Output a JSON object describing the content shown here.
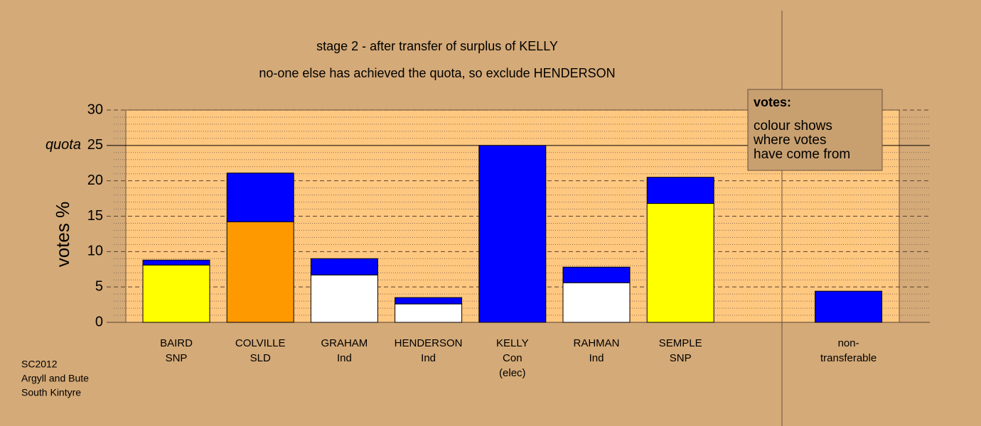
{
  "chart_data": {
    "type": "stacked-bar",
    "title": "stage 2 - after transfer of surplus of KELLY",
    "subtitle": "no-one else has achieved the quota, so exclude HENDERSON",
    "y_label": "votes %",
    "categories": [
      [
        "BAIRD",
        "SNP"
      ],
      [
        "COLVILLE",
        "SLD"
      ],
      [
        "GRAHAM",
        "Ind"
      ],
      [
        "HENDERSON",
        "Ind"
      ],
      [
        "KELLY",
        "Con",
        "(elec)"
      ],
      [
        "RAHMAN",
        "Ind"
      ],
      [
        "SEMPLE",
        "SNP"
      ],
      null,
      [
        "non-",
        "transferable"
      ]
    ],
    "series": [
      {
        "colors": [
          "#ffff00",
          "#ff9900",
          "#ffffff",
          "#ffffff",
          "#0000ff",
          "#ffffff",
          "#ffff00",
          null,
          null
        ],
        "values": [
          8.1,
          14.2,
          6.7,
          2.6,
          25,
          5.6,
          16.8,
          null,
          null
        ]
      },
      {
        "color": "#0000ff",
        "values": [
          0.7,
          6.9,
          2.3,
          0.9,
          null,
          2.2,
          3.7,
          null,
          4.4
        ]
      }
    ],
    "ylim": [
      0,
      30
    ],
    "yticks": [
      0,
      5,
      10,
      15,
      20,
      25,
      30
    ],
    "minor_yticks": [
      1,
      2,
      3,
      4,
      6,
      7,
      8,
      9,
      11,
      12,
      13,
      14,
      16,
      17,
      18,
      19,
      21,
      22,
      23,
      24,
      26,
      27,
      28,
      29
    ],
    "quota": {
      "value": 25,
      "label": "quota"
    },
    "legend": {
      "title": "votes:",
      "lines": [
        "colour shows",
        "where votes",
        "have come from"
      ]
    },
    "source": [
      "SC2012",
      "Argyll and Bute",
      "South Kintyre"
    ]
  }
}
